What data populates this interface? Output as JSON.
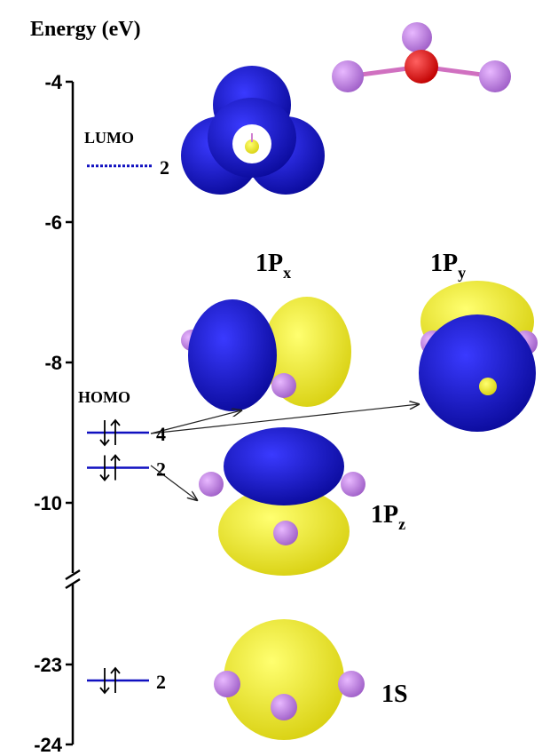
{
  "axis_label": "Energy (eV)",
  "axis": {
    "segments": [
      {
        "ylim": [
          -11,
          -4
        ],
        "yticks": [
          -4,
          -6,
          -8,
          -10
        ]
      },
      {
        "ylim": [
          -24,
          -22
        ],
        "yticks": [
          -23,
          -24
        ]
      }
    ]
  },
  "levels": [
    {
      "label": "LUMO",
      "energy": -5.2,
      "degeneracy": 2,
      "style": "dashed"
    },
    {
      "label": "HOMO",
      "energy": -9.0,
      "degeneracy": 4,
      "style": "solid"
    },
    {
      "energy": -9.5,
      "degeneracy": 2,
      "style": "solid"
    },
    {
      "energy": -23.2,
      "degeneracy": 2,
      "style": "solid"
    }
  ],
  "orbitals": [
    {
      "main": "1P",
      "sub": "x"
    },
    {
      "main": "1P",
      "sub": "y"
    },
    {
      "main": "1P",
      "sub": "z"
    },
    {
      "main": "1S"
    }
  ]
}
